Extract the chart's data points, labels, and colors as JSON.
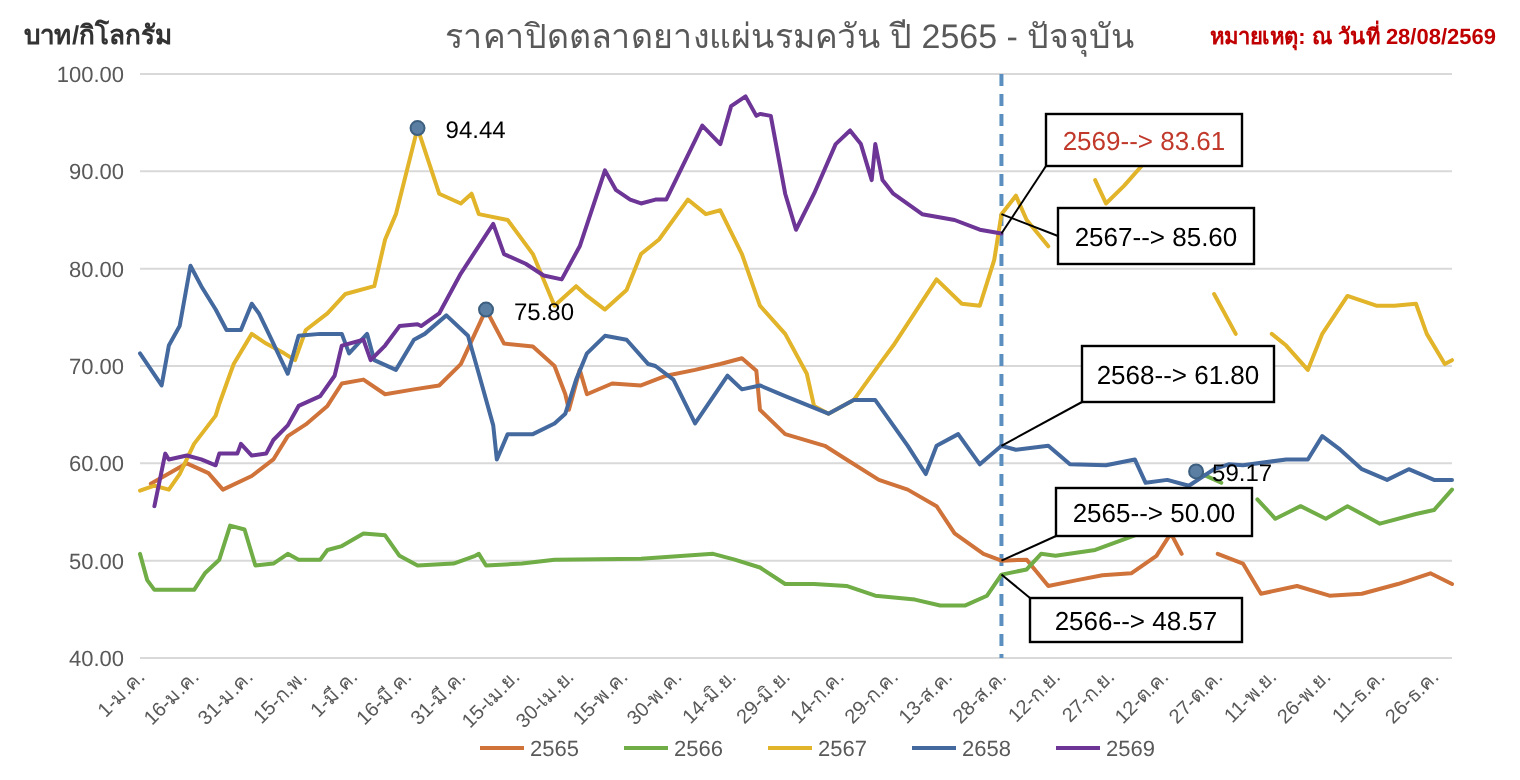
{
  "chart_data": {
    "type": "line",
    "title": "ราคาปิดตลาดยางแผ่นรมควัน ปี 2565 - ปัจจุบัน",
    "ylabel": "บาท/กิโลกรัม",
    "xlim": [
      "--01-01",
      "--12-31"
    ],
    "xticks": [
      {
        "value": "--01-01",
        "label": "1-ม.ค."
      },
      {
        "value": "--01-16",
        "label": "16-ม.ค."
      },
      {
        "value": "--01-31",
        "label": "31-ม.ค."
      },
      {
        "value": "--02-15",
        "label": "15-ก.พ."
      },
      {
        "value": "--03-01",
        "label": "1-มี.ค."
      },
      {
        "value": "--03-16",
        "label": "16-มี.ค."
      },
      {
        "value": "--03-31",
        "label": "31-มี.ค."
      },
      {
        "value": "--04-15",
        "label": "15-เม.ย."
      },
      {
        "value": "--04-30",
        "label": "30-เม.ย."
      },
      {
        "value": "--05-15",
        "label": "15-พ.ค."
      },
      {
        "value": "--05-30",
        "label": "30-พ.ค."
      },
      {
        "value": "--06-14",
        "label": "14-มิ.ย."
      },
      {
        "value": "--06-29",
        "label": "29-มิ.ย."
      },
      {
        "value": "--07-14",
        "label": "14-ก.ค."
      },
      {
        "value": "--07-29",
        "label": "29-ก.ค."
      },
      {
        "value": "--08-13",
        "label": "13-ส.ค."
      },
      {
        "value": "--08-28",
        "label": "28-ส.ค."
      },
      {
        "value": "--09-12",
        "label": "12-ก.ย."
      },
      {
        "value": "--09-27",
        "label": "27-ก.ย."
      },
      {
        "value": "--10-12",
        "label": "12-ต.ค."
      },
      {
        "value": "--10-27",
        "label": "27-ต.ค."
      },
      {
        "value": "--11-11",
        "label": "11-พ.ย."
      },
      {
        "value": "--11-26",
        "label": "26-พ.ย."
      },
      {
        "value": "--12-11",
        "label": "11-ธ.ค."
      },
      {
        "value": "--12-26",
        "label": "26-ธ.ค."
      }
    ],
    "ylim": [
      40,
      100
    ],
    "yticks": [
      {
        "value": 40,
        "label": "40.00"
      },
      {
        "value": 50,
        "label": "50.00"
      },
      {
        "value": 60,
        "label": "60.00"
      },
      {
        "value": 70,
        "label": "70.00"
      },
      {
        "value": 80,
        "label": "80.00"
      },
      {
        "value": 90,
        "label": "90.00"
      },
      {
        "value": 100,
        "label": "100.00"
      }
    ],
    "grid": "y",
    "legend": "bottom",
    "marker": "none",
    "line_style": "solid",
    "ref_lines": [
      {
        "axis": "x",
        "value": "--08-28",
        "label": null,
        "color": "#5b8fbf",
        "line_style": "dashed"
      }
    ],
    "series": [
      {
        "name": "2565",
        "color": "#d0733a",
        "x": [
          "--01-04",
          "--01-14",
          "--01-20",
          "--01-24",
          "--02-01",
          "--02-07",
          "--02-11",
          "--02-16",
          "--02-22",
          "--02-26",
          "--03-04",
          "--03-10",
          "--03-18",
          "--03-25",
          "--03-31",
          "--04-07",
          "--04-12",
          "--04-20",
          "--04-26",
          "--04-29",
          "--04-30",
          "--05-03",
          "--05-05",
          "--05-12",
          "--05-20",
          "--05-27",
          "--06-04",
          "--06-11",
          "--06-17",
          "--06-21",
          "--06-22",
          "--06-29",
          "--07-10",
          "--07-16",
          "--07-25",
          "--08-02",
          "--08-10",
          "--08-15",
          "--08-23",
          "--08-28",
          "--09-04",
          "--09-10",
          "--09-18",
          "--09-25",
          "--10-03",
          "--10-10",
          "--10-14",
          "--10-17",
          "--10-24",
          "--10-27",
          "--11-03",
          "--11-08",
          "--11-18",
          "--11-27",
          "--12-06",
          "--12-16",
          "--12-25",
          "--12-31"
        ],
        "values": [
          57.9,
          60.0,
          59.0,
          57.3,
          58.7,
          60.4,
          62.8,
          64.0,
          65.9,
          68.2,
          68.6,
          67.1,
          67.6,
          68.0,
          70.2,
          75.8,
          72.3,
          72.0,
          70.0,
          67.1,
          65.5,
          69.6,
          67.1,
          68.2,
          68.0,
          69.0,
          69.6,
          70.2,
          70.8,
          69.5,
          65.5,
          63.0,
          61.8,
          60.4,
          58.3,
          57.3,
          55.6,
          52.8,
          50.7,
          50.0,
          50.1,
          47.4,
          48.0,
          48.5,
          48.7,
          50.5,
          52.8,
          50.7,
          null,
          50.7,
          49.7,
          46.6,
          47.4,
          46.4,
          46.6,
          47.6,
          48.7,
          47.6
        ]
      },
      {
        "name": "2566",
        "color": "#70ad47",
        "x": [
          "--01-01",
          "--01-03",
          "--01-05",
          "--01-16",
          "--01-19",
          "--01-23",
          "--01-26",
          "--01-30",
          "--02-02",
          "--02-07",
          "--02-11",
          "--02-14",
          "--02-20",
          "--02-22",
          "--02-26",
          "--03-04",
          "--03-10",
          "--03-14",
          "--03-19",
          "--03-29",
          "--04-04",
          "--04-05",
          "--04-07",
          "--04-17",
          "--04-26",
          "--05-20",
          "--06-09",
          "--06-15",
          "--06-22",
          "--06-29",
          "--07-07",
          "--07-16",
          "--07-24",
          "--08-04",
          "--08-11",
          "--08-18",
          "--08-24",
          "--08-28",
          "--09-04",
          "--09-08",
          "--09-12",
          "--09-23",
          "--10-04",
          "--10-11",
          "--10-17",
          "--10-21",
          "--10-28",
          "--11-04",
          "--11-07",
          "--11-12",
          "--11-19",
          "--11-26",
          "--12-02",
          "--12-11",
          "--12-21",
          "--12-26",
          "--12-31"
        ],
        "values": [
          50.7,
          48.0,
          47.0,
          47.0,
          48.7,
          50.1,
          53.6,
          53.2,
          49.5,
          49.7,
          50.7,
          50.1,
          50.1,
          51.1,
          51.5,
          52.8,
          52.6,
          50.5,
          49.5,
          49.7,
          50.5,
          50.7,
          49.5,
          49.7,
          50.1,
          50.2,
          50.7,
          50.1,
          49.3,
          47.6,
          47.6,
          47.4,
          46.4,
          46.0,
          45.4,
          45.4,
          46.4,
          48.57,
          49.1,
          50.7,
          50.5,
          51.1,
          52.6,
          null,
          null,
          59.17,
          58.0,
          null,
          56.3,
          54.3,
          55.6,
          54.3,
          55.6,
          53.8,
          54.8,
          55.2,
          57.3
        ]
      },
      {
        "name": "2567",
        "color": "#e2b42a",
        "x": [
          "--01-01",
          "--01-05",
          "--01-09",
          "--01-12",
          "--01-16",
          "--01-22",
          "--01-23",
          "--01-26",
          "--01-27",
          "--02-01",
          "--02-05",
          "--02-10",
          "--02-13",
          "--02-16",
          "--02-22",
          "--02-27",
          "--03-07",
          "--03-10",
          "--03-13",
          "--03-19",
          "--03-25",
          "--03-31",
          "--04-03",
          "--04-05",
          "--04-13",
          "--04-20",
          "--04-26",
          "--05-02",
          "--05-05",
          "--05-10",
          "--05-16",
          "--05-20",
          "--05-25",
          "--06-02",
          "--06-07",
          "--06-11",
          "--06-17",
          "--06-22",
          "--06-29",
          "--07-05",
          "--07-07",
          "--07-11",
          "--07-18",
          "--07-26",
          "--07-29",
          "--08-10",
          "--08-17",
          "--08-22",
          "--08-26",
          "--08-28",
          "--09-01",
          "--09-04",
          "--09-10",
          "--09-17",
          "--09-23",
          "--09-26",
          "--10-01",
          "--10-06",
          "--10-11",
          "--10-19",
          "--10-26",
          "--11-01",
          "--11-04",
          "--11-08",
          "--11-11",
          "--11-15",
          "--11-21",
          "--11-25",
          "--12-02",
          "--12-10",
          "--12-15",
          "--12-21",
          "--12-24",
          "--12-29",
          "--12-31"
        ],
        "values": [
          57.2,
          57.7,
          57.3,
          58.9,
          62.0,
          64.9,
          66.1,
          69.2,
          70.2,
          73.3,
          72.3,
          71.3,
          70.6,
          73.7,
          75.4,
          77.4,
          78.2,
          83.0,
          85.6,
          94.44,
          87.7,
          86.7,
          87.7,
          85.6,
          85.0,
          81.5,
          76.2,
          78.2,
          77.2,
          75.8,
          77.8,
          81.5,
          83.0,
          87.1,
          85.6,
          86.0,
          81.5,
          76.2,
          73.3,
          69.2,
          65.9,
          65.1,
          66.5,
          70.6,
          72.1,
          78.9,
          76.4,
          76.2,
          80.9,
          85.6,
          87.5,
          85.0,
          82.3,
          null,
          89.1,
          86.7,
          88.5,
          90.6,
          null,
          null,
          77.4,
          73.3,
          null,
          null,
          73.3,
          72.1,
          69.6,
          73.3,
          77.2,
          76.2,
          76.2,
          76.4,
          73.3,
          70.2,
          70.6
        ]
      },
      {
        "name": "2658",
        "color": "#44699e",
        "x": [
          "--01-01",
          "--01-07",
          "--01-09",
          "--01-12",
          "--01-15",
          "--01-18",
          "--01-22",
          "--01-25",
          "--01-29",
          "--02-01",
          "--02-03",
          "--02-06",
          "--02-11",
          "--02-14",
          "--02-20",
          "--02-26",
          "--02-28",
          "--03-05",
          "--03-07",
          "--03-13",
          "--03-18",
          "--03-21",
          "--03-27",
          "--04-02",
          "--04-05",
          "--04-09",
          "--04-10",
          "--04-13",
          "--04-20",
          "--04-26",
          "--04-29",
          "--05-02",
          "--05-05",
          "--05-10",
          "--05-16",
          "--05-22",
          "--05-24",
          "--05-29",
          "--06-04",
          "--06-13",
          "--06-17",
          "--06-22",
          "--06-29",
          "--07-11",
          "--07-18",
          "--07-24",
          "--08-02",
          "--08-07",
          "--08-10",
          "--08-16",
          "--08-22",
          "--08-28",
          "--09-01",
          "--09-10",
          "--09-16",
          "--09-26",
          "--10-04",
          "--10-07",
          "--10-13",
          "--10-19",
          "--10-26",
          "--10-30",
          "--11-03",
          "--11-15",
          "--11-21",
          "--11-25",
          "--11-30",
          "--12-06",
          "--12-13",
          "--12-19",
          "--12-26",
          "--12-31"
        ],
        "values": [
          71.3,
          68.0,
          72.1,
          74.1,
          80.3,
          78.2,
          75.8,
          73.7,
          73.7,
          76.4,
          75.4,
          73.1,
          69.2,
          73.1,
          73.3,
          73.3,
          71.3,
          73.3,
          70.6,
          69.6,
          72.7,
          73.3,
          75.2,
          73.1,
          69.2,
          63.9,
          60.4,
          63.0,
          63.0,
          64.1,
          65.1,
          68.6,
          71.3,
          73.1,
          72.7,
          70.2,
          70.0,
          68.6,
          64.1,
          69.0,
          67.6,
          68.0,
          66.9,
          65.1,
          66.5,
          66.5,
          61.8,
          58.9,
          61.8,
          63.0,
          59.9,
          61.8,
          61.4,
          61.8,
          59.9,
          59.8,
          60.4,
          58.0,
          58.3,
          57.7,
          59.4,
          59.9,
          59.8,
          60.4,
          60.4,
          62.8,
          61.4,
          59.4,
          58.3,
          59.4,
          58.3,
          58.3
        ]
      },
      {
        "name": "2569",
        "color": "#6d3596",
        "x": [
          "--01-05",
          "--01-08",
          "--01-09",
          "--01-14",
          "--01-18",
          "--01-22",
          "--01-23",
          "--01-28",
          "--01-29",
          "--02-01",
          "--02-05",
          "--02-07",
          "--02-11",
          "--02-14",
          "--02-20",
          "--02-24",
          "--02-26",
          "--03-04",
          "--03-06",
          "--03-10",
          "--03-14",
          "--03-19",
          "--03-20",
          "--03-25",
          "--03-31",
          "--04-09",
          "--04-12",
          "--04-18",
          "--04-23",
          "--04-28",
          "--05-03",
          "--05-10",
          "--05-13",
          "--05-17",
          "--05-20",
          "--05-24",
          "--05-27",
          "--06-06",
          "--06-11",
          "--06-14",
          "--06-18",
          "--06-21",
          "--06-22",
          "--06-25",
          "--06-29",
          "--07-02",
          "--07-07",
          "--07-13",
          "--07-17",
          "--07-20",
          "--07-23",
          "--07-24",
          "--07-26",
          "--07-29",
          "--08-06",
          "--08-15",
          "--08-22",
          "--08-28"
        ],
        "values": [
          55.6,
          61.0,
          60.4,
          60.8,
          60.4,
          59.8,
          61.0,
          61.0,
          62.0,
          60.8,
          61.0,
          62.4,
          63.9,
          65.9,
          66.9,
          69.0,
          72.1,
          72.7,
          70.6,
          72.1,
          74.1,
          74.3,
          74.1,
          75.4,
          79.5,
          84.6,
          81.5,
          80.5,
          79.3,
          78.9,
          82.3,
          90.1,
          88.1,
          87.1,
          86.7,
          87.1,
          87.1,
          94.7,
          92.8,
          96.7,
          97.7,
          95.7,
          95.9,
          95.7,
          87.7,
          84.0,
          87.7,
          92.8,
          94.2,
          92.8,
          89.1,
          92.8,
          89.1,
          87.7,
          85.6,
          85.0,
          84.0,
          83.61
        ]
      }
    ],
    "annotations": [
      "หมายเหตุ: ณ วันที่ 28/08/2569",
      {
        "text": "94.44",
        "x": "--03-19",
        "y": 94.44
      },
      {
        "text": "75.80",
        "x": "--04-07",
        "y": 75.8
      },
      {
        "text": "59.17",
        "x": "--10-21",
        "y": 59.17
      },
      {
        "text": "2569--> 83.61",
        "x": "--08-28",
        "y": 83.61
      },
      {
        "text": "2567--> 85.60",
        "x": "--08-28",
        "y": 85.6
      },
      {
        "text": "2568--> 61.80",
        "x": "--08-28",
        "y": 61.8
      },
      {
        "text": "2565--> 50.00",
        "x": "--08-28",
        "y": 50.0
      },
      {
        "text": "2566--> 48.57",
        "x": "--08-28",
        "y": 48.57
      }
    ]
  }
}
